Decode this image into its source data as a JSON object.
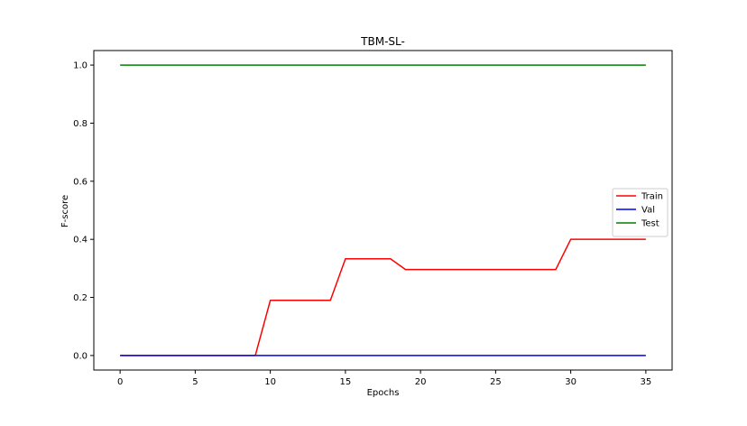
{
  "chart_data": {
    "type": "line",
    "title": "TBM-SL-",
    "xlabel": "Epochs",
    "ylabel": "F-score",
    "xlim": [
      -1.75,
      36.75
    ],
    "ylim": [
      -0.05,
      1.05
    ],
    "xticks": [
      0,
      5,
      10,
      15,
      20,
      25,
      30,
      35
    ],
    "yticks": [
      0.0,
      0.2,
      0.4,
      0.6,
      0.8,
      1.0
    ],
    "xtick_labels": [
      "0",
      "5",
      "10",
      "15",
      "20",
      "25",
      "30",
      "35"
    ],
    "ytick_labels": [
      "0.0",
      "0.2",
      "0.4",
      "0.6",
      "0.8",
      "1.0"
    ],
    "grid": false,
    "legend_position": "center-right",
    "x": [
      0,
      1,
      2,
      3,
      4,
      5,
      6,
      7,
      8,
      9,
      10,
      11,
      12,
      13,
      14,
      15,
      16,
      17,
      18,
      19,
      20,
      21,
      22,
      23,
      24,
      25,
      26,
      27,
      28,
      29,
      30,
      31,
      32,
      33,
      34,
      35
    ],
    "series": [
      {
        "name": "Train",
        "color": "#ff0000",
        "values": [
          0,
          0,
          0,
          0,
          0,
          0,
          0,
          0,
          0,
          0,
          0.19,
          0.19,
          0.19,
          0.19,
          0.19,
          0.333,
          0.333,
          0.333,
          0.333,
          0.296,
          0.296,
          0.296,
          0.296,
          0.296,
          0.296,
          0.296,
          0.296,
          0.296,
          0.296,
          0.296,
          0.4,
          0.4,
          0.4,
          0.4,
          0.4,
          0.4
        ]
      },
      {
        "name": "Val",
        "color": "#0000ff",
        "values": [
          0,
          0,
          0,
          0,
          0,
          0,
          0,
          0,
          0,
          0,
          0,
          0,
          0,
          0,
          0,
          0,
          0,
          0,
          0,
          0,
          0,
          0,
          0,
          0,
          0,
          0,
          0,
          0,
          0,
          0,
          0,
          0,
          0,
          0,
          0,
          0
        ]
      },
      {
        "name": "Test",
        "color": "#008000",
        "values": [
          1,
          1,
          1,
          1,
          1,
          1,
          1,
          1,
          1,
          1,
          1,
          1,
          1,
          1,
          1,
          1,
          1,
          1,
          1,
          1,
          1,
          1,
          1,
          1,
          1,
          1,
          1,
          1,
          1,
          1,
          1,
          1,
          1,
          1,
          1,
          1
        ]
      }
    ]
  }
}
